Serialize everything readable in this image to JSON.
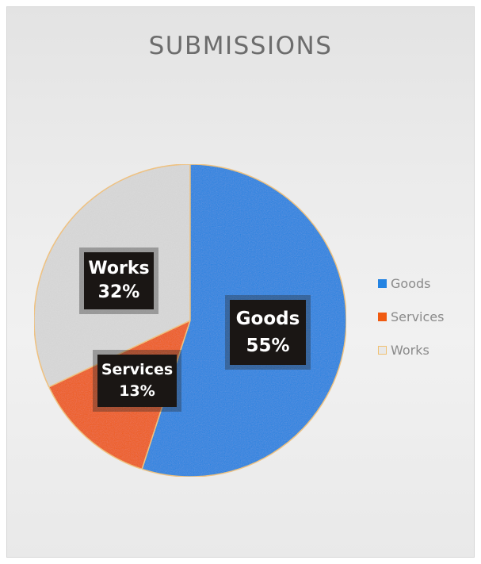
{
  "chart_data": {
    "type": "pie",
    "title": "SUBMISSIONS",
    "slices": [
      {
        "label": "Goods",
        "value": 55,
        "value_label": "55%",
        "color": "#2383e2"
      },
      {
        "label": "Services",
        "value": 13,
        "value_label": "13%",
        "color": "#f05a10"
      },
      {
        "label": "Works",
        "value": 32,
        "value_label": "32%",
        "color": "#d9d9d9"
      }
    ],
    "legend": {
      "position": "right",
      "entries": [
        "Goods",
        "Services",
        "Works"
      ]
    }
  }
}
